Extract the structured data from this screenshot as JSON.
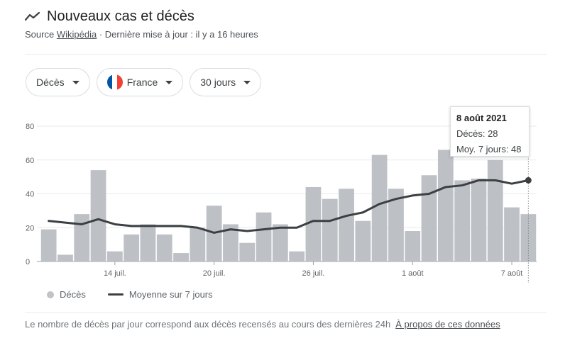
{
  "header": {
    "title": "Nouveaux cas et décès",
    "source_label": "Source",
    "source_link": "Wikipédia",
    "updated": "· Dernière mise à jour : il y a 16 heures"
  },
  "filters": {
    "metric": "Décès",
    "country": "France",
    "period": "30 jours"
  },
  "colors": {
    "bar": "#bdc1c6",
    "line": "#3c4043",
    "grid": "#e8eaed",
    "flag_blue": "#0055a4",
    "flag_white": "#ffffff",
    "flag_red": "#ef4135"
  },
  "tooltip": {
    "date": "8 août 2021",
    "deaths": "Décès: 28",
    "average": "Moy. 7 jours: 48"
  },
  "legend": {
    "deaths": "Décès",
    "average": "Moyenne sur 7 jours"
  },
  "footer": {
    "note": "Le nombre de décès par jour correspond aux décès recensés au cours des dernières 24h",
    "link": "À propos de ces données"
  },
  "chart_data": {
    "type": "bar",
    "title": "Nouveaux cas et décès",
    "xlabel": "",
    "ylabel": "",
    "ylim": [
      0,
      80
    ],
    "y_ticks": [
      "0",
      "20",
      "40",
      "60",
      "80"
    ],
    "x_tick_labels": [
      {
        "label": "14 juil.",
        "index": 4
      },
      {
        "label": "20 juil.",
        "index": 10
      },
      {
        "label": "26 juil.",
        "index": 16
      },
      {
        "label": "1 août",
        "index": 22
      },
      {
        "label": "7 août",
        "index": 28
      }
    ],
    "series": [
      {
        "name": "Décès",
        "type": "bar",
        "values": [
          19,
          4,
          28,
          54,
          6,
          16,
          22,
          16,
          5,
          20,
          33,
          22,
          11,
          29,
          22,
          6,
          44,
          37,
          43,
          24,
          63,
          43,
          18,
          51,
          66,
          48,
          49,
          60,
          32,
          28
        ]
      },
      {
        "name": "Moyenne sur 7 jours",
        "type": "line",
        "values": [
          24,
          23,
          22,
          25,
          22,
          21,
          21,
          21,
          21,
          20,
          17,
          19,
          18,
          19,
          20,
          20,
          24,
          24,
          27,
          29,
          34,
          37,
          39,
          40,
          44,
          45,
          48,
          48,
          46,
          48
        ]
      }
    ],
    "highlight_index": 29
  }
}
